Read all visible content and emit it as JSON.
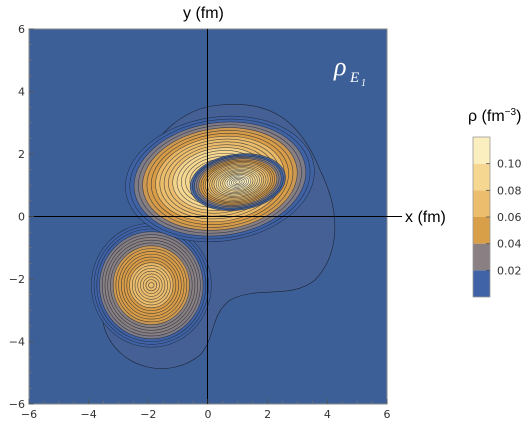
{
  "chart_data": {
    "type": "heatmap",
    "title": "",
    "xlabel": "x (fm)",
    "ylabel": "y (fm)",
    "xlim": [
      -6,
      6
    ],
    "ylim": [
      -6,
      6
    ],
    "xticks": [
      "−6",
      "−4",
      "−2",
      "0",
      "2",
      "4",
      "6"
    ],
    "yticks": [
      "6",
      "4",
      "2",
      "0",
      "−2",
      "−4",
      "−6"
    ],
    "xtick_values": [
      -6,
      -4,
      -2,
      0,
      2,
      4,
      6
    ],
    "ytick_values": [
      6,
      4,
      2,
      0,
      -2,
      -4,
      -6
    ],
    "plot_label": {
      "symbol": "ρ",
      "subscript": "E",
      "subsub": "1"
    },
    "peaks": [
      {
        "x": 1.0,
        "y": 1.1,
        "rho": 0.11
      },
      {
        "x": -1.9,
        "y": -2.2,
        "rho": 0.07
      },
      {
        "x": -0.3,
        "y": 1.3,
        "rho": 0.09
      }
    ],
    "legend": {
      "title_main": "ρ (fm",
      "title_exp": "−3",
      "title_close": ")",
      "ticks": [
        "0.10",
        "0.08",
        "0.06",
        "0.04",
        "0.02"
      ],
      "tick_values": [
        0.1,
        0.08,
        0.06,
        0.04,
        0.02
      ],
      "range": [
        0,
        0.12
      ],
      "bands": [
        {
          "from": 0.0,
          "to": 0.02,
          "color": "#3f63a6"
        },
        {
          "from": 0.02,
          "to": 0.04,
          "color": "#8a8083"
        },
        {
          "from": 0.04,
          "to": 0.06,
          "color": "#d99e48"
        },
        {
          "from": 0.06,
          "to": 0.08,
          "color": "#ebbd6c"
        },
        {
          "from": 0.08,
          "to": 0.1,
          "color": "#f5d791"
        },
        {
          "from": 0.1,
          "to": 0.12,
          "color": "#fbefbf"
        }
      ]
    },
    "background_color": "#3d5f98",
    "grid": false
  }
}
